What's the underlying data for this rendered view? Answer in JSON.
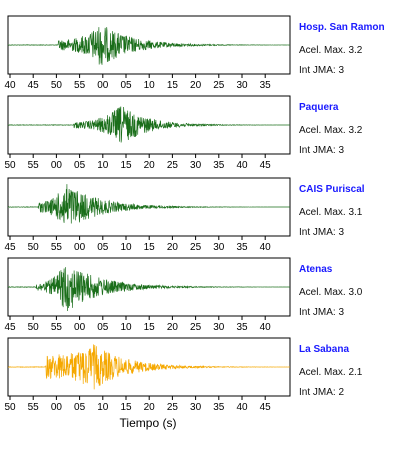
{
  "chart_data": {
    "type": "line",
    "xlabel": "Tiempo (s)",
    "info_labels": {
      "accel_prefix": "Acel. Max.",
      "jma_prefix": "Int JMA:"
    },
    "stations": [
      {
        "name": "Hosp. San Ramon",
        "accel_max": "3.2",
        "int_jma": "3",
        "color": "#1a6e1a",
        "ticks": [
          "40",
          "45",
          "50",
          "55",
          "00",
          "05",
          "10",
          "15",
          "20",
          "25",
          "30",
          "35"
        ],
        "signal": {
          "onset": 10.0,
          "peak": 18.5,
          "end": 46,
          "peak_amp": 0.8,
          "pre_amp": 0.2
        }
      },
      {
        "name": "Paquera",
        "accel_max": "3.2",
        "int_jma": "3",
        "color": "#1a6e1a",
        "ticks": [
          "50",
          "55",
          "00",
          "05",
          "10",
          "15",
          "20",
          "25",
          "30",
          "35",
          "40",
          "45"
        ],
        "signal": {
          "onset": 13.0,
          "peak": 22.5,
          "end": 46,
          "peak_amp": 0.75,
          "pre_amp": 0.12
        }
      },
      {
        "name": "CAIS Puriscal",
        "accel_max": "3.1",
        "int_jma": "3",
        "color": "#1a6e1a",
        "ticks": [
          "45",
          "50",
          "55",
          "00",
          "05",
          "10",
          "15",
          "20",
          "25",
          "30",
          "35",
          "40"
        ],
        "signal": {
          "onset": 6.0,
          "peak": 11.5,
          "end": 40,
          "peak_amp": 0.9,
          "pre_amp": 0.2
        }
      },
      {
        "name": "Atenas",
        "accel_max": "3.0",
        "int_jma": "3",
        "color": "#1a6e1a",
        "ticks": [
          "45",
          "50",
          "55",
          "00",
          "05",
          "10",
          "15",
          "20",
          "25",
          "30",
          "35",
          "40"
        ],
        "signal": {
          "onset": 5.5,
          "peak": 11.5,
          "end": 42,
          "peak_amp": 0.95,
          "pre_amp": 0.15
        }
      },
      {
        "name": "La Sabana",
        "accel_max": "2.1",
        "int_jma": "2",
        "color": "#f5a800",
        "ticks": [
          "50",
          "55",
          "00",
          "05",
          "10",
          "15",
          "20",
          "25",
          "30",
          "35",
          "40",
          "45"
        ],
        "signal": {
          "onset": 7.5,
          "peak": 17.0,
          "end": 46,
          "peak_amp": 0.85,
          "pre_amp": 0.45
        }
      }
    ]
  }
}
